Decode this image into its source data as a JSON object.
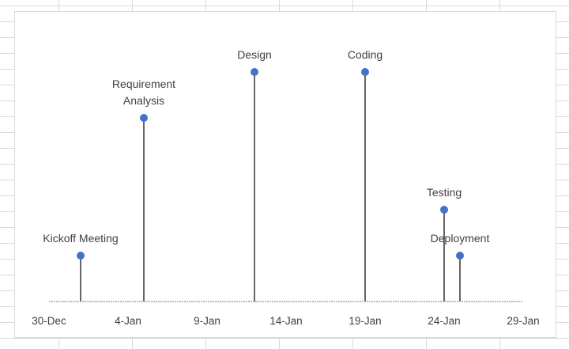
{
  "chart_data": {
    "type": "scatter",
    "title": "",
    "xlabel": "",
    "ylabel": "",
    "x_axis_type": "date",
    "x_tick_labels": [
      "30-Dec",
      "4-Jan",
      "9-Jan",
      "14-Jan",
      "19-Jan",
      "24-Jan",
      "29-Jan"
    ],
    "x_ticks": [
      "2017-12-30",
      "2018-01-04",
      "2018-01-09",
      "2018-01-14",
      "2018-01-19",
      "2018-01-24",
      "2018-01-29"
    ],
    "xlim": [
      "2017-12-30",
      "2018-01-29"
    ],
    "ylim": [
      0,
      100
    ],
    "y_axis_visible": false,
    "grid": false,
    "legend": "none",
    "drop_lines": true,
    "colors": {
      "marker": "#4472c4",
      "drop_line": "#404040",
      "axis": "#a6a6a6",
      "text": "#404040"
    },
    "points": [
      {
        "label": "Kickoff Meeting",
        "x": "2018-01-01",
        "y": 20
      },
      {
        "label": "Requirement Analysis",
        "x": "2018-01-05",
        "y": 80
      },
      {
        "label": "Design",
        "x": "2018-01-12",
        "y": 100
      },
      {
        "label": "Coding",
        "x": "2018-01-19",
        "y": 100
      },
      {
        "label": "Testing",
        "x": "2018-01-24",
        "y": 40
      },
      {
        "label": "Deployment",
        "x": "2018-01-25",
        "y": 20
      }
    ]
  }
}
